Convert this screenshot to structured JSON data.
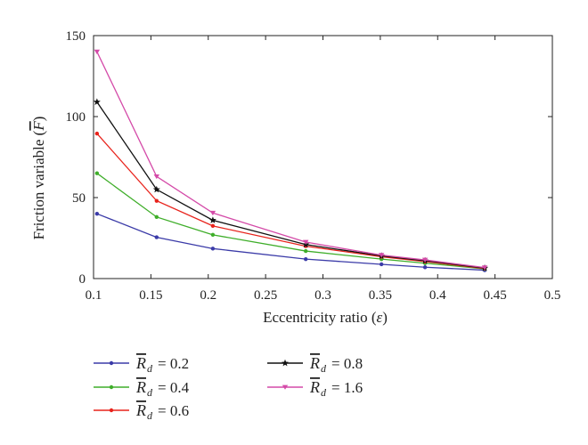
{
  "chart_data": {
    "type": "line",
    "xlabel_prefix": "Eccentricity ratio (",
    "xlabel_symbol": "ε",
    "xlabel_suffix": ")",
    "ylabel_prefix": "Friction variable (",
    "ylabel_symbol": "F",
    "ylabel_suffix": ")",
    "xlim": [
      0.1,
      0.5
    ],
    "ylim": [
      0,
      150
    ],
    "x_ticks": [
      "0.1",
      "0.15",
      "0.2",
      "0.25",
      "0.3",
      "0.35",
      "0.4",
      "0.45",
      "0.5"
    ],
    "y_ticks": [
      "0",
      "50",
      "100",
      "150"
    ],
    "x": [
      0.103,
      0.155,
      0.204,
      0.285,
      0.351,
      0.389,
      0.441
    ],
    "legend_symbol": "R",
    "legend_subscript": "d",
    "legend_placement": "below",
    "series": [
      {
        "name": "= 0.2",
        "color": "#3b3ba8",
        "marker": "dot",
        "values": [
          40,
          25.5,
          18.5,
          12,
          8.8,
          7,
          5.2
        ]
      },
      {
        "name": "= 0.4",
        "color": "#3fae2a",
        "marker": "dot",
        "values": [
          65,
          38,
          27,
          17,
          12,
          9.5,
          6
        ]
      },
      {
        "name": "= 0.6",
        "color": "#e8231c",
        "marker": "dot",
        "values": [
          89.5,
          48,
          32.5,
          20,
          13.5,
          10.5,
          6.2
        ]
      },
      {
        "name": "= 0.8",
        "color": "#111111",
        "marker": "star",
        "values": [
          109,
          55,
          36,
          21,
          14,
          11,
          6.5
        ]
      },
      {
        "name": "= 1.6",
        "color": "#d44aa8",
        "marker": "triangle",
        "values": [
          140,
          63,
          40.5,
          22.5,
          14.5,
          11.5,
          6.8
        ]
      }
    ]
  }
}
